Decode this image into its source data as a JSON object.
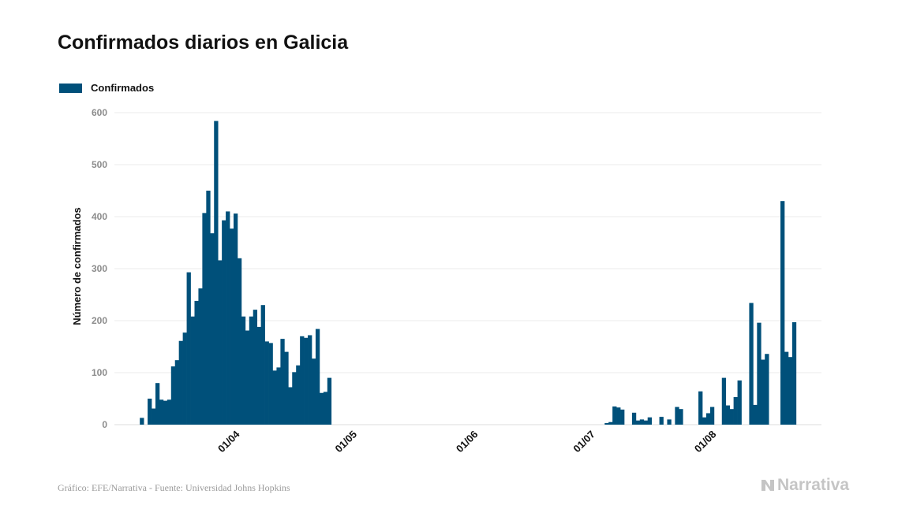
{
  "header": {
    "title": "Confirmados diarios en Galicia"
  },
  "legend": {
    "label": "Confirmados"
  },
  "footer": {
    "source": "Gráfico: EFE/Narrativa - Fuente: Universidad Johns Hopkins",
    "brand": "Narrativa"
  },
  "colors": {
    "bar": "#00507a",
    "grid": "#ebebeb",
    "tick": "#8c8c8c",
    "brand": "#c5c5c5"
  },
  "icons": {
    "brand": "narrativa-logo-icon"
  },
  "chart_data": {
    "type": "bar",
    "title": "Confirmados diarios en Galicia",
    "xlabel": "",
    "ylabel": "Número de confirmados",
    "ylim": [
      0,
      600
    ],
    "yticks": [
      0,
      100,
      200,
      300,
      400,
      500,
      600
    ],
    "xlim": [
      "2020-03-01",
      "2020-08-29"
    ],
    "xtick_labels": [
      {
        "date": "2020-04-01",
        "label": "01/04"
      },
      {
        "date": "2020-05-01",
        "label": "01/05"
      },
      {
        "date": "2020-06-01",
        "label": "01/06"
      },
      {
        "date": "2020-07-01",
        "label": "01/07"
      },
      {
        "date": "2020-08-01",
        "label": "01/08"
      }
    ],
    "grid": true,
    "legend_position": "top-left",
    "series": [
      {
        "name": "Confirmados",
        "start_date": "2020-03-08",
        "values": [
          13,
          0,
          50,
          31,
          80,
          48,
          46,
          48,
          112,
          124,
          161,
          177,
          293,
          208,
          238,
          262,
          407,
          450,
          368,
          584,
          316,
          393,
          410,
          377,
          406,
          320,
          208,
          181,
          208,
          221,
          188,
          230,
          160,
          157,
          104,
          110,
          165,
          140,
          72,
          101,
          114,
          170,
          167,
          172,
          127,
          184,
          61,
          63,
          90,
          0,
          0,
          0,
          0,
          0,
          0,
          0,
          0,
          0,
          0,
          0,
          0,
          0,
          0,
          0,
          0,
          0,
          0,
          0,
          0,
          0,
          0,
          0,
          0,
          0,
          0,
          0,
          0,
          0,
          0,
          0,
          0,
          0,
          0,
          0,
          0,
          0,
          0,
          0,
          0,
          0,
          0,
          0,
          0,
          0,
          0,
          0,
          0,
          0,
          0,
          0,
          0,
          0,
          0,
          0,
          0,
          0,
          0,
          0,
          0,
          0,
          0,
          0,
          0,
          0,
          0,
          0,
          0,
          0,
          0,
          3,
          5,
          35,
          33,
          29,
          0,
          0,
          23,
          8,
          10,
          8,
          14,
          0,
          0,
          15,
          0,
          10,
          0,
          34,
          30,
          0,
          0,
          0,
          0,
          64,
          14,
          22,
          34,
          0,
          0,
          90,
          37,
          30,
          53,
          85,
          0,
          0,
          234,
          38,
          196,
          125,
          136,
          0,
          0,
          0,
          430,
          140,
          130,
          197
        ]
      }
    ]
  }
}
